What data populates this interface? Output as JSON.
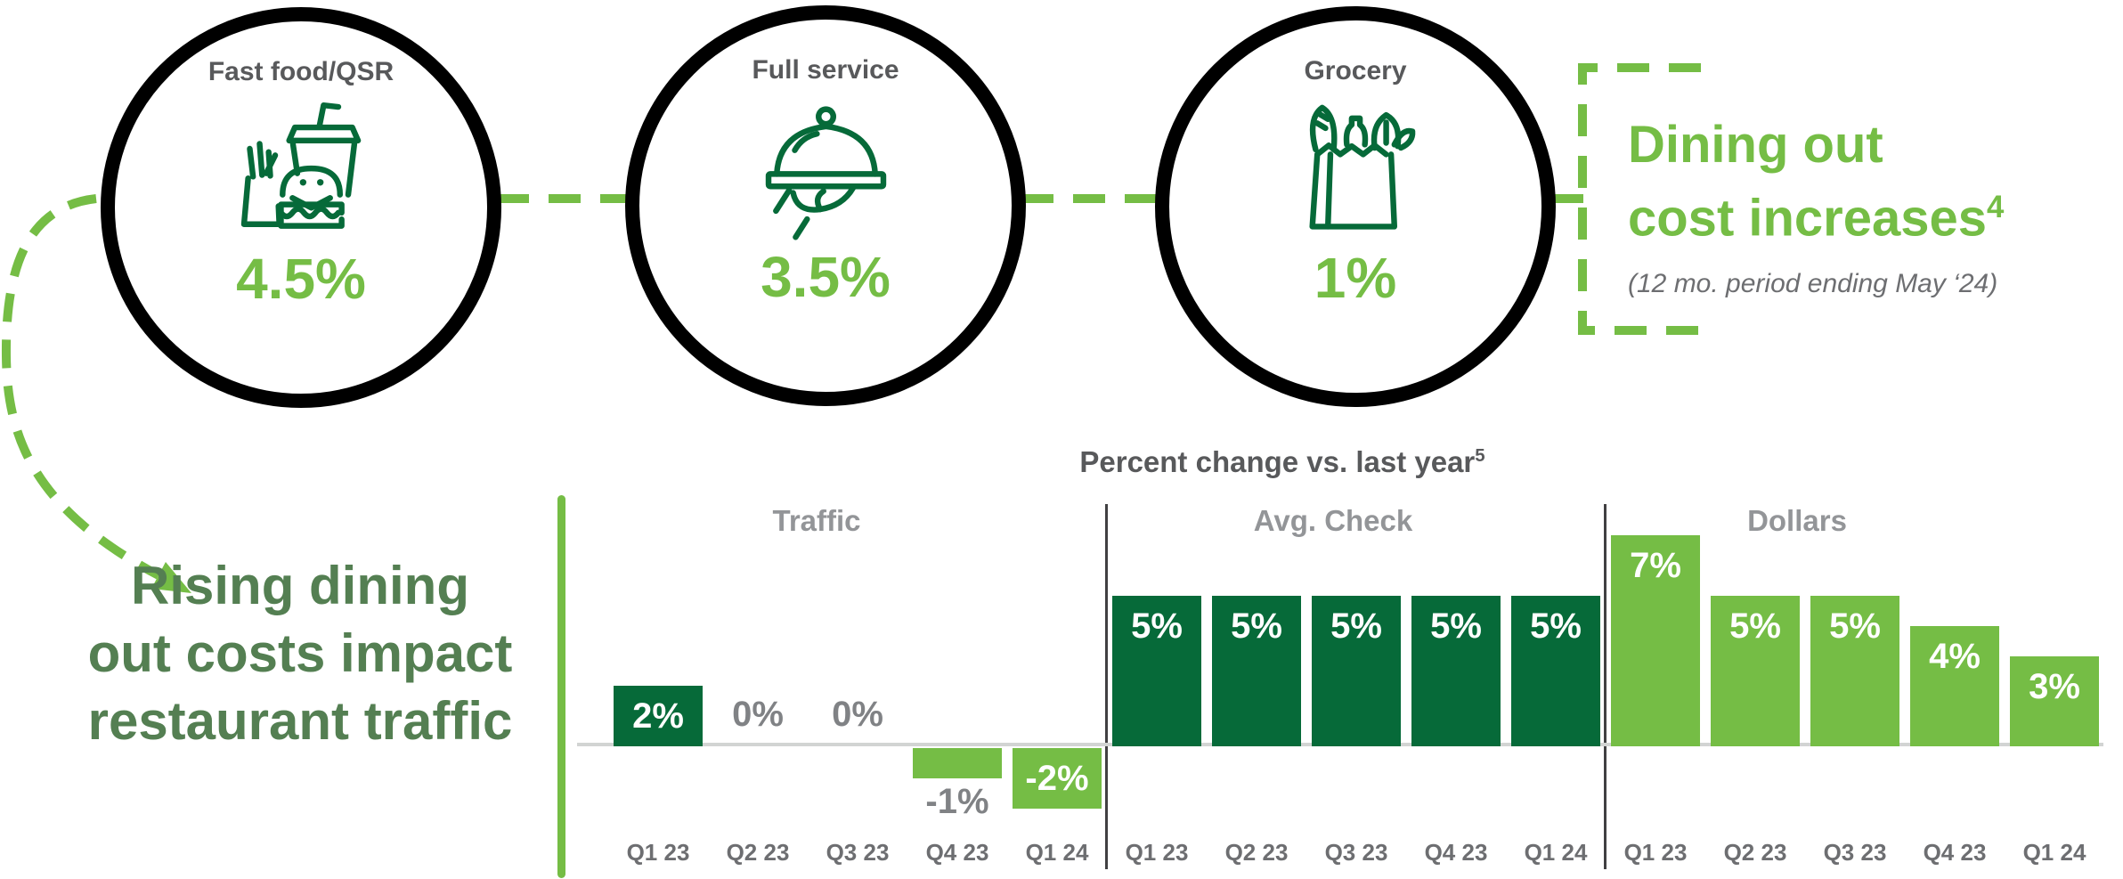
{
  "colors": {
    "dark_green": "#066a39",
    "light_green": "#75bd45",
    "note_green": "#547f52",
    "title_gray": "#58595b",
    "heading_gray": "#939598",
    "label_gray": "#808285",
    "axis_gray": "#6d6e71",
    "baseline_gray": "#d2d4d3",
    "divider_dark": "#414042",
    "ring_black": "#000000"
  },
  "circles": [
    {
      "label": "Fast food/QSR",
      "value": "4.5%",
      "icon": "fast-food-icon"
    },
    {
      "label": "Full service",
      "value": "3.5%",
      "icon": "serving-cloche-icon"
    },
    {
      "label": "Grocery",
      "value": "1%",
      "icon": "grocery-bag-icon"
    }
  ],
  "callout": {
    "line1": "Dining out",
    "line2": "cost increases",
    "superscript": "4",
    "note": "(12 mo. period ending May ‘24)"
  },
  "left_note": {
    "line1": "Rising dining",
    "line2": "out costs impact",
    "line3": "restaurant traffic"
  },
  "chart_data": {
    "type": "bar",
    "title": "Percent change vs. last year",
    "title_superscript": "5",
    "unit": "percent change vs. last year",
    "categories": [
      "Q1 23",
      "Q2 23",
      "Q3 23",
      "Q4 23",
      "Q1 24"
    ],
    "ylim": [
      -2,
      7
    ],
    "grid": false,
    "legend": "none",
    "groups": [
      {
        "name": "Traffic",
        "values": [
          2,
          0,
          0,
          -1,
          -2
        ],
        "labels": [
          "2%",
          "0%",
          "0%",
          "-1%",
          "-2%"
        ],
        "bar_color_positive": "#066a39",
        "bar_color_negative": "#75bd45"
      },
      {
        "name": "Avg. Check",
        "values": [
          5,
          5,
          5,
          5,
          5
        ],
        "labels": [
          "5%",
          "5%",
          "5%",
          "5%",
          "5%"
        ],
        "bar_color_positive": "#066a39",
        "bar_color_negative": "#75bd45"
      },
      {
        "name": "Dollars",
        "values": [
          7,
          5,
          5,
          4,
          3
        ],
        "labels": [
          "7%",
          "5%",
          "5%",
          "4%",
          "3%"
        ],
        "bar_color_positive": "#75bd45",
        "bar_color_negative": "#75bd45"
      }
    ]
  }
}
